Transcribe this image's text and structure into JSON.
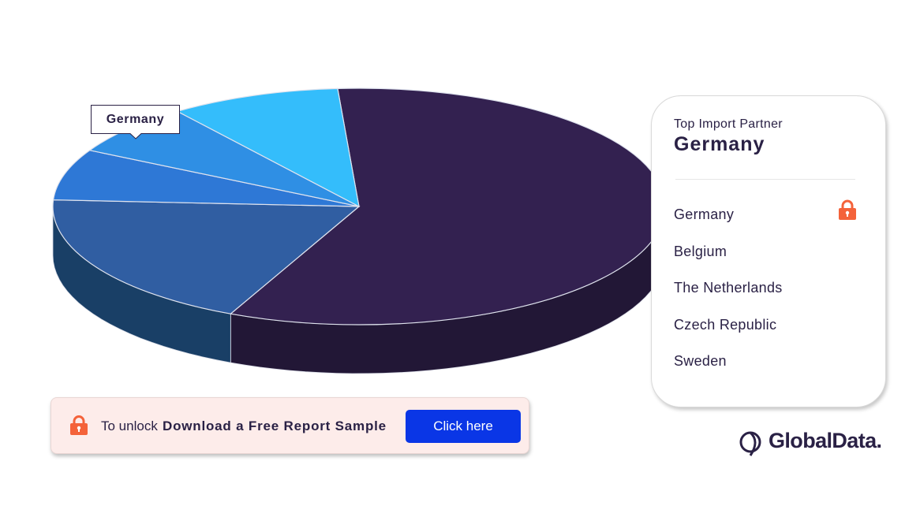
{
  "chart_data": {
    "type": "pie",
    "title": "",
    "categories": [
      "Germany",
      "Belgium",
      "The Netherlands",
      "Czech Republic",
      "Sweden"
    ],
    "values": [
      58,
      19,
      7,
      7,
      9
    ],
    "colors": [
      "#332150",
      "#305ea2",
      "#2e78d6",
      "#2f8fe4",
      "#34bdfb"
    ],
    "side_colors": [
      "#221736",
      "#193f66",
      "#103c66",
      "#0f3a5c",
      "#164b66"
    ],
    "annotations": [
      "Germany"
    ]
  },
  "partner_card": {
    "heading": "Top Import Partner",
    "title": "Germany",
    "items": [
      "Germany",
      "Belgium",
      "The Netherlands",
      "Czech Republic",
      "Sweden"
    ],
    "lock_icon": "lock-icon"
  },
  "unlock_bar": {
    "prefix": "To unlock",
    "cta": "Download a Free Report Sample",
    "button_label": "Click here",
    "lock_color": "#f4623a",
    "button_color": "#0a36e6"
  },
  "brand": {
    "name": "GlobalData."
  }
}
